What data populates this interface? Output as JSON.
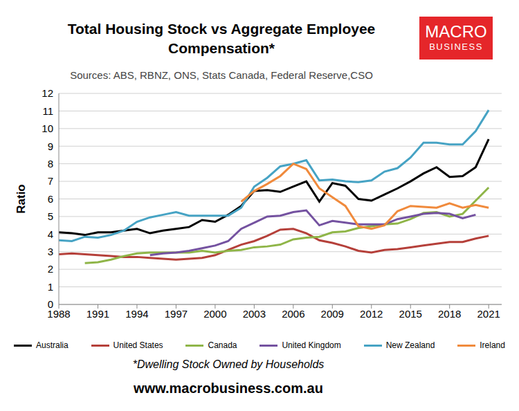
{
  "chart_data": {
    "type": "line",
    "title": "Total Housing Stock vs Aggregate Employee Compensation*",
    "subtitle": "Sources: ABS, RBNZ, ONS, Stats Canada, Federal Reserve,CSO",
    "y_label": "Ratio",
    "footnote": "*Dwelling Stock Owned by Households",
    "website": "www.macrobusiness.com.au",
    "logo_text": [
      "MACRO",
      "BUSINESS"
    ],
    "x": [
      1988,
      1989,
      1990,
      1991,
      1992,
      1993,
      1994,
      1995,
      1996,
      1997,
      1998,
      1999,
      2000,
      2001,
      2002,
      2003,
      2004,
      2005,
      2006,
      2007,
      2008,
      2009,
      2010,
      2011,
      2012,
      2013,
      2014,
      2015,
      2016,
      2017,
      2018,
      2019,
      2020,
      2021
    ],
    "xlim": [
      1988,
      2022
    ],
    "xticks": [
      1988,
      1991,
      1994,
      1997,
      2000,
      2003,
      2006,
      2009,
      2012,
      2015,
      2018,
      2021
    ],
    "ylim": [
      0,
      12
    ],
    "yticks": [
      0,
      1,
      2,
      3,
      4,
      5,
      6,
      7,
      8,
      9,
      10,
      11,
      12
    ],
    "grid": true,
    "legend": "bottom",
    "series": [
      {
        "name": "Australia",
        "color": "#000000",
        "values": [
          4.1,
          4.05,
          3.95,
          4.1,
          4.1,
          4.2,
          4.3,
          4.05,
          4.2,
          4.3,
          4.4,
          4.8,
          4.7,
          5.1,
          5.6,
          6.45,
          6.5,
          6.4,
          6.7,
          7.0,
          5.85,
          6.9,
          6.75,
          6.0,
          5.9,
          6.25,
          6.6,
          7.0,
          7.45,
          7.8,
          7.25,
          7.3,
          7.8,
          9.4
        ]
      },
      {
        "name": "United States",
        "color": "#b5403a",
        "values": [
          2.85,
          2.9,
          2.85,
          2.8,
          2.75,
          2.7,
          2.7,
          2.65,
          2.6,
          2.55,
          2.6,
          2.65,
          2.8,
          3.1,
          3.4,
          3.6,
          3.9,
          4.25,
          4.3,
          4.05,
          3.65,
          3.5,
          3.3,
          3.05,
          2.95,
          3.1,
          3.15,
          3.25,
          3.35,
          3.45,
          3.55,
          3.55,
          3.75,
          3.9
        ]
      },
      {
        "name": "Canada",
        "color": "#8fb548",
        "values": [
          null,
          null,
          2.35,
          2.4,
          2.55,
          2.75,
          2.9,
          2.95,
          2.95,
          2.95,
          2.95,
          3.05,
          2.95,
          3.05,
          3.1,
          3.25,
          3.3,
          3.4,
          3.7,
          3.8,
          3.85,
          4.1,
          4.15,
          4.35,
          4.45,
          4.55,
          4.6,
          4.85,
          5.2,
          5.25,
          5.0,
          5.15,
          5.9,
          6.65
        ]
      },
      {
        "name": "United Kingdom",
        "color": "#7452a0",
        "values": [
          null,
          null,
          null,
          null,
          null,
          null,
          null,
          2.8,
          2.9,
          2.95,
          3.05,
          3.2,
          3.35,
          3.6,
          4.3,
          4.65,
          5.0,
          5.05,
          5.25,
          5.35,
          4.5,
          4.75,
          4.65,
          4.55,
          4.55,
          4.55,
          4.85,
          5.0,
          5.15,
          5.2,
          5.15,
          4.9,
          5.1,
          null
        ]
      },
      {
        "name": "New Zealand",
        "color": "#46a3c4",
        "values": [
          3.65,
          3.6,
          3.85,
          3.8,
          3.95,
          4.2,
          4.7,
          4.95,
          5.1,
          5.25,
          5.05,
          5.05,
          5.05,
          5.05,
          5.5,
          6.7,
          7.2,
          7.85,
          8.0,
          8.2,
          7.05,
          7.1,
          7.0,
          6.95,
          7.05,
          7.55,
          7.75,
          8.35,
          9.2,
          9.2,
          9.1,
          9.1,
          9.85,
          11.05
        ]
      },
      {
        "name": "Ireland",
        "color": "#f08a3c",
        "values": [
          null,
          null,
          null,
          null,
          null,
          null,
          null,
          null,
          null,
          null,
          null,
          null,
          null,
          null,
          5.85,
          6.45,
          6.85,
          7.3,
          8.0,
          7.7,
          6.6,
          6.1,
          5.6,
          4.45,
          4.3,
          4.5,
          5.3,
          5.6,
          5.55,
          5.5,
          5.75,
          5.5,
          5.65,
          5.5
        ]
      }
    ]
  }
}
